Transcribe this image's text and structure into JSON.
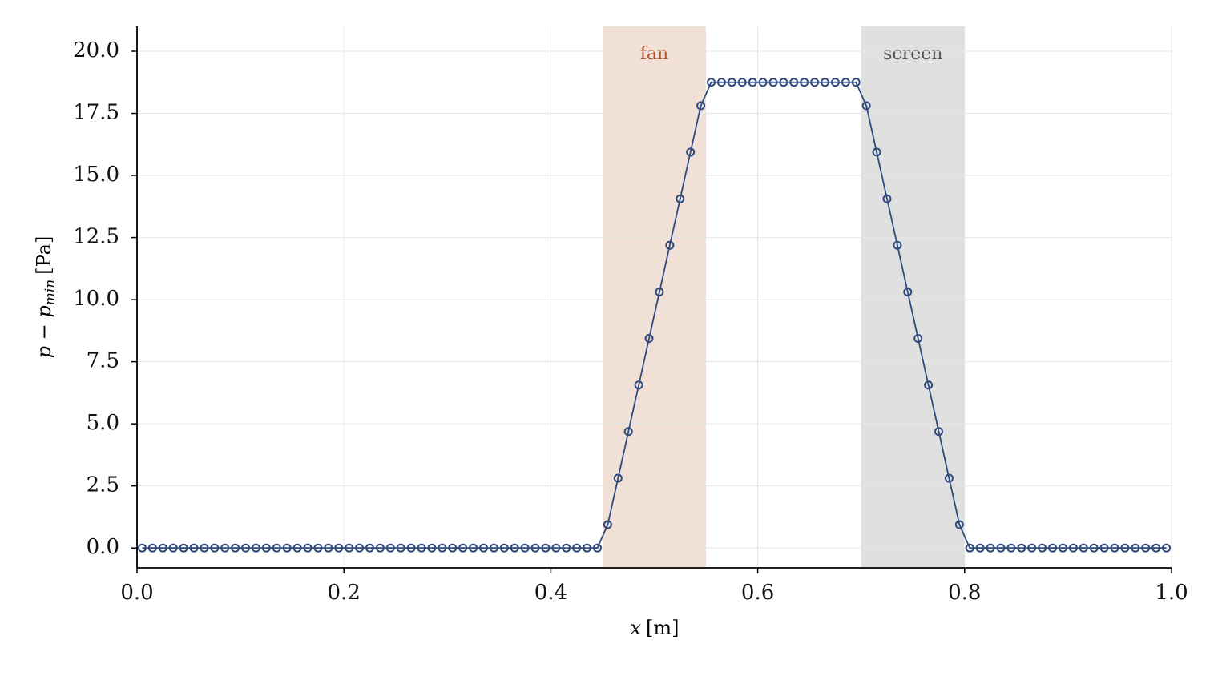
{
  "chart_data": {
    "type": "line",
    "x_label": {
      "var": "x",
      "unit": "[m]"
    },
    "y_label": {
      "main": "p − p",
      "sub": "min",
      "unit": "[Pa]"
    },
    "x": [
      0.005,
      0.015,
      0.025,
      0.035,
      0.045,
      0.055,
      0.065,
      0.075,
      0.085,
      0.095,
      0.105,
      0.115,
      0.125,
      0.135,
      0.145,
      0.155,
      0.165,
      0.175,
      0.185,
      0.195,
      0.205,
      0.215,
      0.225,
      0.235,
      0.245,
      0.255,
      0.265,
      0.275,
      0.285,
      0.295,
      0.305,
      0.315,
      0.325,
      0.335,
      0.345,
      0.355,
      0.365,
      0.375,
      0.385,
      0.395,
      0.405,
      0.415,
      0.425,
      0.435,
      0.445,
      0.455,
      0.465,
      0.475,
      0.485,
      0.495,
      0.505,
      0.515,
      0.525,
      0.535,
      0.545,
      0.555,
      0.565,
      0.575,
      0.585,
      0.595,
      0.605,
      0.615,
      0.625,
      0.635,
      0.645,
      0.655,
      0.665,
      0.675,
      0.685,
      0.695,
      0.705,
      0.715,
      0.725,
      0.735,
      0.745,
      0.755,
      0.765,
      0.775,
      0.785,
      0.795,
      0.805,
      0.815,
      0.825,
      0.835,
      0.845,
      0.855,
      0.865,
      0.875,
      0.885,
      0.895,
      0.905,
      0.915,
      0.925,
      0.935,
      0.945,
      0.955,
      0.965,
      0.975,
      0.985,
      0.995
    ],
    "values": [
      0,
      0,
      0,
      0,
      0,
      0,
      0,
      0,
      0,
      0,
      0,
      0,
      0,
      0,
      0,
      0,
      0,
      0,
      0,
      0,
      0,
      0,
      0,
      0,
      0,
      0,
      0,
      0,
      0,
      0,
      0,
      0,
      0,
      0,
      0,
      0,
      0,
      0,
      0,
      0,
      0,
      0,
      0,
      0,
      0,
      0.94,
      2.81,
      4.69,
      6.56,
      8.44,
      10.31,
      12.19,
      14.06,
      15.94,
      17.81,
      18.75,
      18.75,
      18.75,
      18.75,
      18.75,
      18.75,
      18.75,
      18.75,
      18.75,
      18.75,
      18.75,
      18.75,
      18.75,
      18.75,
      18.75,
      17.81,
      15.94,
      14.06,
      12.19,
      10.31,
      8.44,
      6.56,
      4.69,
      2.81,
      0.94,
      0,
      0,
      0,
      0,
      0,
      0,
      0,
      0,
      0,
      0,
      0,
      0,
      0,
      0,
      0,
      0,
      0,
      0,
      0,
      0
    ],
    "color": "#2e4a7d",
    "marker": "circle",
    "regions": [
      {
        "label": "fan",
        "start": 0.45,
        "end": 0.55,
        "color": "#f0e0d6",
        "label_color": "#b0522c"
      },
      {
        "label": "screen",
        "start": 0.7,
        "end": 0.8,
        "color": "#e0e0e0",
        "label_color": "#555555"
      }
    ],
    "xlim": [
      0,
      1
    ],
    "ylim": [
      -0.8,
      21
    ],
    "xticks": [
      {
        "value": 0,
        "label": "0.0"
      },
      0.2,
      0.4,
      0.6,
      0.8,
      {
        "value": 1,
        "label": "1.0"
      }
    ],
    "yticks": [
      {
        "value": 0,
        "label": "0.0"
      },
      2.5,
      {
        "value": 5,
        "label": "5.0"
      },
      7.5,
      {
        "value": 10,
        "label": "10.0"
      },
      12.5,
      {
        "value": 15,
        "label": "15.0"
      },
      17.5,
      {
        "value": 20,
        "label": "20.0"
      }
    ],
    "grid": true
  }
}
